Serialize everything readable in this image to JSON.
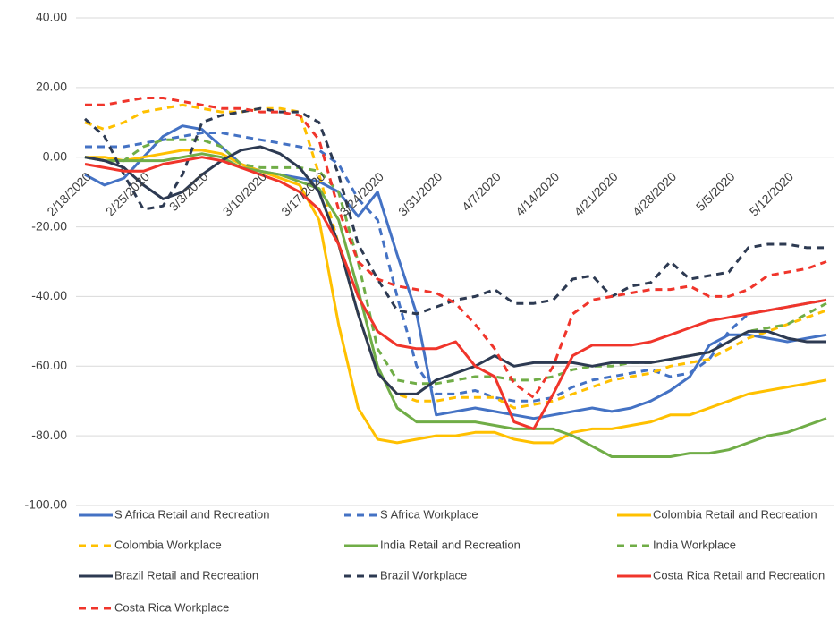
{
  "chart_data": {
    "type": "line",
    "categories": [
      "2/18/2020",
      null,
      null,
      "2/25/2020",
      null,
      null,
      "3/3/2020",
      null,
      null,
      "3/10/2020",
      null,
      null,
      "3/17/2020",
      null,
      null,
      "3/24/2020",
      null,
      null,
      "3/31/2020",
      null,
      null,
      "4/7/2020",
      null,
      null,
      "4/14/2020",
      null,
      null,
      "4/21/2020",
      null,
      null,
      "4/28/2020",
      null,
      null,
      "5/5/2020",
      null,
      null,
      "5/12/2020",
      null,
      null
    ],
    "ylim": [
      -100,
      40
    ],
    "yticks": [
      {
        "value": 40,
        "label": "40.00"
      },
      {
        "value": 20,
        "label": "20.00"
      },
      {
        "value": 0,
        "label": "0.00"
      },
      {
        "value": -20,
        "label": "-20.00"
      },
      {
        "value": -40,
        "label": "-40.00"
      },
      {
        "value": -60,
        "label": "-60.00"
      },
      {
        "value": -80,
        "label": "-80.00"
      },
      {
        "value": -100,
        "label": "-100.00"
      }
    ],
    "grid": true,
    "legend": "bottom",
    "series": [
      {
        "name": "S Africa Retail and Recreation",
        "color": "#4472c4",
        "dashed": false,
        "values": [
          -5,
          -8,
          -6,
          0,
          6,
          9,
          8,
          3,
          -2,
          -4,
          -5,
          -6,
          -7,
          -10,
          -17,
          -10,
          -28,
          -45,
          -74,
          -73,
          -72,
          -73,
          -74,
          -75,
          -74,
          -73,
          -72,
          -73,
          -72,
          -70,
          -67,
          -63,
          -54,
          -51,
          -51,
          -52,
          -53,
          -52,
          -51
        ]
      },
      {
        "name": "S Africa Workplace",
        "color": "#4472c4",
        "dashed": true,
        "values": [
          3,
          3,
          3,
          4,
          5,
          6,
          7,
          7,
          6,
          5,
          4,
          3,
          2,
          -2,
          -12,
          -18,
          -40,
          -60,
          -68,
          -68,
          -67,
          -69,
          -70,
          -70,
          -69,
          -66,
          -64,
          -63,
          -62,
          -61,
          -63,
          -62,
          -58,
          -50,
          -45,
          -44,
          -43,
          -42,
          -41
        ]
      },
      {
        "name": "Colombia Retail and Recreation",
        "color": "#ffc000",
        "dashed": false,
        "values": [
          0,
          0,
          -1,
          0,
          1,
          2,
          2,
          1,
          -2,
          -4,
          -6,
          -8,
          -18,
          -48,
          -72,
          -81,
          -82,
          -81,
          -80,
          -80,
          -79,
          -79,
          -81,
          -82,
          -82,
          -79,
          -78,
          -78,
          -77,
          -76,
          -74,
          -74,
          -72,
          -70,
          -68,
          -67,
          -66,
          -65,
          -64
        ]
      },
      {
        "name": "Colombia Workplace",
        "color": "#ffc000",
        "dashed": true,
        "values": [
          10,
          8,
          10,
          13,
          14,
          15,
          14,
          13,
          13,
          14,
          14,
          13,
          -5,
          -25,
          -45,
          -62,
          -68,
          -70,
          -70,
          -69,
          -69,
          -69,
          -72,
          -71,
          -70,
          -68,
          -66,
          -64,
          -63,
          -62,
          -60,
          -59,
          -58,
          -55,
          -52,
          -50,
          -48,
          -46,
          -44
        ]
      },
      {
        "name": "India Retail and Recreation",
        "color": "#70ad47",
        "dashed": false,
        "values": [
          0,
          -1,
          -1,
          -1,
          -1,
          0,
          1,
          0,
          -3,
          -4,
          -5,
          -7,
          -9,
          -18,
          -38,
          -60,
          -72,
          -76,
          -76,
          -76,
          -76,
          -77,
          -78,
          -78,
          -78,
          -80,
          -83,
          -86,
          -86,
          -86,
          -86,
          -85,
          -85,
          -84,
          -82,
          -80,
          -79,
          -77,
          -75
        ]
      },
      {
        "name": "India Workplace",
        "color": "#70ad47",
        "dashed": true,
        "values": [
          0,
          -1,
          -1,
          3,
          5,
          5,
          5,
          3,
          -2,
          -3,
          -3,
          -3,
          -4,
          -10,
          -30,
          -55,
          -64,
          -65,
          -65,
          -64,
          -63,
          -63,
          -64,
          -64,
          -63,
          -61,
          -60,
          -60,
          -59,
          -59,
          -58,
          -57,
          -56,
          -53,
          -50,
          -49,
          -48,
          -45,
          -42
        ]
      },
      {
        "name": "Brazil Retail and Recreation",
        "color": "#2d3a52",
        "dashed": false,
        "values": [
          0,
          -1,
          -3,
          -8,
          -12,
          -10,
          -5,
          -1,
          2,
          3,
          1,
          -3,
          -10,
          -25,
          -45,
          -62,
          -68,
          -68,
          -64,
          -62,
          -60,
          -57,
          -60,
          -59,
          -59,
          -59,
          -60,
          -59,
          -59,
          -59,
          -58,
          -57,
          -56,
          -53,
          -50,
          -50,
          -52,
          -53,
          -53
        ]
      },
      {
        "name": "Brazil Workplace",
        "color": "#2d3a52",
        "dashed": true,
        "values": [
          11,
          6,
          -5,
          -15,
          -14,
          -5,
          10,
          12,
          13,
          14,
          13,
          13,
          10,
          -5,
          -25,
          -35,
          -44,
          -45,
          -43,
          -41,
          -40,
          -38,
          -42,
          -42,
          -41,
          -35,
          -34,
          -40,
          -37,
          -36,
          -30,
          -35,
          -34,
          -33,
          -26,
          -25,
          -25,
          -26,
          -26
        ]
      },
      {
        "name": "Costa Rica Retail and Recreation",
        "color": "#f0352b",
        "dashed": false,
        "values": [
          -2,
          -3,
          -4,
          -4,
          -2,
          -1,
          0,
          -1,
          -3,
          -5,
          -7,
          -10,
          -15,
          -25,
          -40,
          -50,
          -54,
          -55,
          -55,
          -53,
          -60,
          -63,
          -76,
          -78,
          -68,
          -57,
          -54,
          -54,
          -54,
          -53,
          -51,
          -49,
          -47,
          -46,
          -45,
          -44,
          -43,
          -42,
          -41
        ]
      },
      {
        "name": "Costa Rica Workplace",
        "color": "#f0352b",
        "dashed": true,
        "values": [
          15,
          15,
          16,
          17,
          17,
          16,
          15,
          14,
          14,
          13,
          13,
          12,
          5,
          -15,
          -30,
          -35,
          -37,
          -38,
          -39,
          -42,
          -48,
          -55,
          -65,
          -69,
          -60,
          -45,
          -41,
          -40,
          -39,
          -38,
          -38,
          -37,
          -40,
          -40,
          -38,
          -34,
          -33,
          -32,
          -30
        ]
      }
    ]
  }
}
